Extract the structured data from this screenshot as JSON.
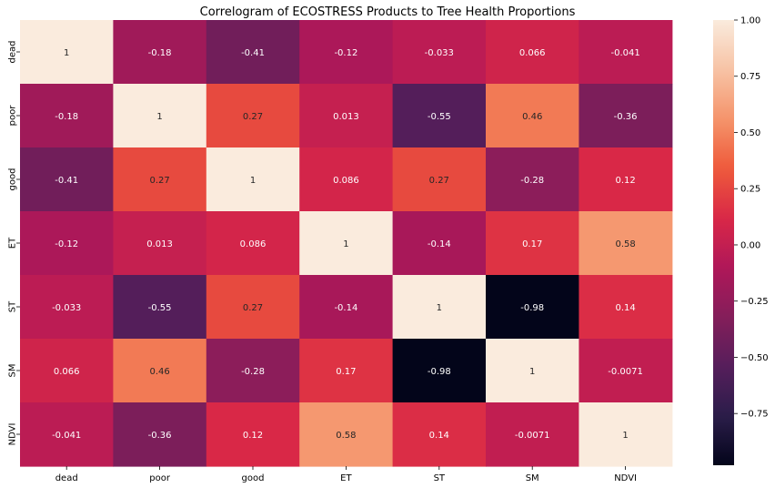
{
  "chart_data": {
    "type": "heatmap",
    "title": "Correlogram of ECOSTRESS Products to Tree Health Proportions",
    "x_labels": [
      "dead",
      "poor",
      "good",
      "ET",
      "ST",
      "SM",
      "NDVI"
    ],
    "y_labels": [
      "dead",
      "poor",
      "good",
      "ET",
      "ST",
      "SM",
      "NDVI"
    ],
    "values": [
      [
        1,
        -0.18,
        -0.41,
        -0.12,
        -0.033,
        0.066,
        -0.041
      ],
      [
        -0.18,
        1,
        0.27,
        0.013,
        -0.55,
        0.46,
        -0.36
      ],
      [
        -0.41,
        0.27,
        1,
        0.086,
        0.27,
        -0.28,
        0.12
      ],
      [
        -0.12,
        0.013,
        0.086,
        1,
        -0.14,
        0.17,
        0.58
      ],
      [
        -0.033,
        -0.55,
        0.27,
        -0.14,
        1,
        -0.98,
        0.14
      ],
      [
        0.066,
        0.46,
        -0.28,
        0.17,
        -0.98,
        1,
        -0.0071
      ],
      [
        -0.041,
        -0.36,
        0.12,
        0.58,
        0.14,
        -0.0071,
        1
      ]
    ],
    "value_labels": [
      [
        "1",
        "-0.18",
        "-0.41",
        "-0.12",
        "-0.033",
        "0.066",
        "-0.041"
      ],
      [
        "-0.18",
        "1",
        "0.27",
        "0.013",
        "-0.55",
        "0.46",
        "-0.36"
      ],
      [
        "-0.41",
        "0.27",
        "1",
        "0.086",
        "0.27",
        "-0.28",
        "0.12"
      ],
      [
        "-0.12",
        "0.013",
        "0.086",
        "1",
        "-0.14",
        "0.17",
        "0.58"
      ],
      [
        "-0.033",
        "-0.55",
        "0.27",
        "-0.14",
        "1",
        "-0.98",
        "0.14"
      ],
      [
        "0.066",
        "0.46",
        "-0.28",
        "0.17",
        "-0.98",
        "1",
        "-0.0071"
      ],
      [
        "-0.041",
        "-0.36",
        "0.12",
        "0.58",
        "0.14",
        "-0.0071",
        "1"
      ]
    ],
    "colorbar": {
      "vmin": -0.98,
      "vmax": 1.0,
      "ticks": [
        1.0,
        0.75,
        0.5,
        0.25,
        0.0,
        -0.25,
        -0.5,
        -0.75
      ],
      "tick_labels": [
        "1.00",
        "0.75",
        "0.50",
        "0.25",
        "0.00",
        "−0.25",
        "−0.50",
        "−0.75"
      ]
    },
    "colormap": "rocket",
    "colormap_stops": [
      "#03051a",
      "#2b1d4a",
      "#561e5b",
      "#841e5a",
      "#b01759",
      "#d92847",
      "#ee5a3b",
      "#f5946b",
      "#f7c3a5",
      "#faebdd"
    ]
  }
}
